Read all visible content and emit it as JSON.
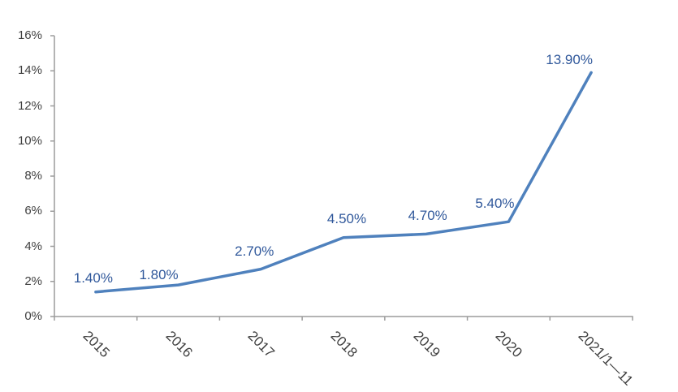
{
  "chart_data": {
    "type": "line",
    "title": "",
    "categories": [
      "2015",
      "2016",
      "2017",
      "2018",
      "2019",
      "2020",
      "2021/1—11"
    ],
    "series": [
      {
        "name": "",
        "values": [
          1.4,
          1.8,
          2.7,
          4.5,
          4.7,
          5.4,
          13.9
        ]
      }
    ],
    "data_labels": [
      "1.40%",
      "1.80%",
      "2.70%",
      "4.50%",
      "4.70%",
      "5.40%",
      "13.90%"
    ],
    "y_ticks": [
      "0%",
      "2%",
      "4%",
      "6%",
      "8%",
      "10%",
      "12%",
      "14%",
      "16%"
    ],
    "ylim": [
      0,
      16
    ],
    "xlabel": "",
    "ylabel": "",
    "grid": false,
    "legend_position": "none",
    "colors": {
      "line": "#4F81BD",
      "data_label": "#30589B",
      "axis": "#9C9C9C",
      "tick_label": "#3F3F3F",
      "background": "#FFFFFF"
    }
  }
}
